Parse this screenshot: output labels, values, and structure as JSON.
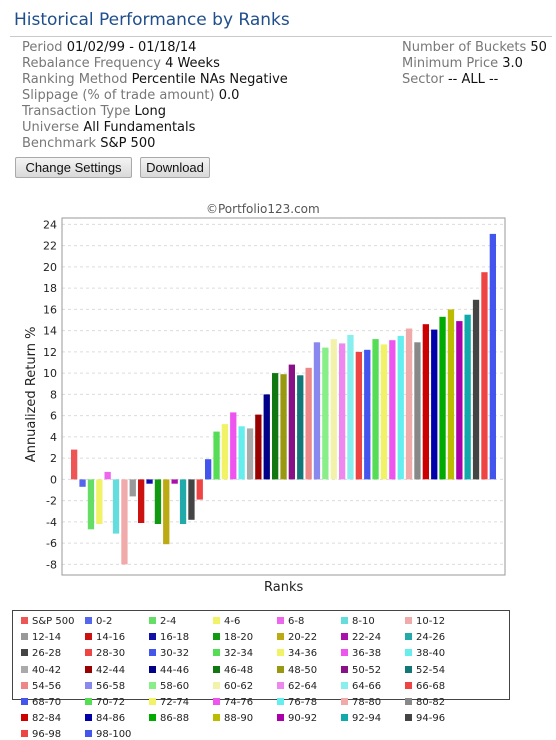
{
  "page": {
    "title": "Historical Performance by Ranks",
    "copyright": "©Portfolio123.com",
    "buttons": {
      "change_settings": "Change Settings",
      "download": "Download"
    }
  },
  "settings": {
    "left": [
      {
        "key": "Period",
        "value": "01/02/99 - 01/18/14"
      },
      {
        "key": "Rebalance Frequency",
        "value": "4 Weeks"
      },
      {
        "key": "Ranking Method",
        "value": "Percentile NAs Negative"
      },
      {
        "key": "Slippage (% of trade amount)",
        "value": "0.0"
      },
      {
        "key": "Transaction Type",
        "value": "Long"
      },
      {
        "key": "Universe",
        "value": "All Fundamentals"
      },
      {
        "key": "Benchmark",
        "value": "S&P 500"
      }
    ],
    "right": [
      {
        "key": "Number of Buckets",
        "value": "50"
      },
      {
        "key": "Minimum Price",
        "value": "3.0"
      },
      {
        "key": "Sector",
        "value": "-- ALL --"
      }
    ]
  },
  "chart_data": {
    "type": "bar",
    "xlabel": "Ranks",
    "ylabel": "Annualized Return %",
    "ylim": [
      -9,
      24.6
    ],
    "yticks": [
      -8,
      -6,
      -4,
      -2,
      0,
      2,
      4,
      6,
      8,
      10,
      12,
      14,
      16,
      18,
      20,
      22,
      24
    ],
    "grid": true,
    "legend_position": "bottom",
    "series": [
      {
        "name": "S&P 500",
        "color": "#ee5555",
        "value": 2.8
      },
      {
        "name": "0-2",
        "color": "#5566ee",
        "value": -0.7
      },
      {
        "name": "2-4",
        "color": "#66dd66",
        "value": -4.7
      },
      {
        "name": "4-6",
        "color": "#f2f266",
        "value": -4.2
      },
      {
        "name": "6-8",
        "color": "#ee66ee",
        "value": 0.7
      },
      {
        "name": "8-10",
        "color": "#66dddd",
        "value": -5.1
      },
      {
        "name": "10-12",
        "color": "#f0aaaa",
        "value": -8.0
      },
      {
        "name": "12-14",
        "color": "#999999",
        "value": -1.6
      },
      {
        "name": "14-16",
        "color": "#cc1111",
        "value": -4.1
      },
      {
        "name": "16-18",
        "color": "#1111aa",
        "value": -0.4
      },
      {
        "name": "18-20",
        "color": "#119911",
        "value": -4.2
      },
      {
        "name": "20-22",
        "color": "#bbaa11",
        "value": -6.1
      },
      {
        "name": "22-24",
        "color": "#aa11aa",
        "value": -0.4
      },
      {
        "name": "24-26",
        "color": "#22aaaa",
        "value": -4.2
      },
      {
        "name": "26-28",
        "color": "#444444",
        "value": -3.8
      },
      {
        "name": "28-30",
        "color": "#ee4444",
        "value": -1.9
      },
      {
        "name": "30-32",
        "color": "#4455ee",
        "value": 1.9
      },
      {
        "name": "32-34",
        "color": "#55dd55",
        "value": 4.5
      },
      {
        "name": "34-36",
        "color": "#f2f266",
        "value": 5.2
      },
      {
        "name": "36-38",
        "color": "#ee55ee",
        "value": 6.3
      },
      {
        "name": "38-40",
        "color": "#66eeee",
        "value": 5.0
      },
      {
        "name": "40-42",
        "color": "#aaaaaa",
        "value": 4.8
      },
      {
        "name": "42-44",
        "color": "#990000",
        "value": 6.1
      },
      {
        "name": "44-46",
        "color": "#000088",
        "value": 8.0
      },
      {
        "name": "46-48",
        "color": "#117711",
        "value": 10.0
      },
      {
        "name": "48-50",
        "color": "#999911",
        "value": 9.9
      },
      {
        "name": "50-52",
        "color": "#881188",
        "value": 10.8
      },
      {
        "name": "52-54",
        "color": "#117777",
        "value": 9.8
      },
      {
        "name": "54-56",
        "color": "#ee8888",
        "value": 10.5
      },
      {
        "name": "56-58",
        "color": "#8888ee",
        "value": 12.9
      },
      {
        "name": "58-60",
        "color": "#88ee88",
        "value": 12.4
      },
      {
        "name": "60-62",
        "color": "#f2f2aa",
        "value": 13.2
      },
      {
        "name": "62-64",
        "color": "#ee88ee",
        "value": 12.8
      },
      {
        "name": "64-66",
        "color": "#88eeee",
        "value": 13.6
      },
      {
        "name": "66-68",
        "color": "#ee4444",
        "value": 12.0
      },
      {
        "name": "68-70",
        "color": "#4455ee",
        "value": 12.2
      },
      {
        "name": "70-72",
        "color": "#55dd55",
        "value": 13.2
      },
      {
        "name": "72-74",
        "color": "#f2f266",
        "value": 12.7
      },
      {
        "name": "74-76",
        "color": "#ee55ee",
        "value": 13.1
      },
      {
        "name": "76-78",
        "color": "#66eeee",
        "value": 13.5
      },
      {
        "name": "78-80",
        "color": "#f0aaaa",
        "value": 14.2
      },
      {
        "name": "80-82",
        "color": "#888888",
        "value": 12.9
      },
      {
        "name": "82-84",
        "color": "#cc0000",
        "value": 14.6
      },
      {
        "name": "84-86",
        "color": "#0000aa",
        "value": 14.1
      },
      {
        "name": "86-88",
        "color": "#00aa00",
        "value": 15.3
      },
      {
        "name": "88-90",
        "color": "#bbbb00",
        "value": 16.0
      },
      {
        "name": "90-92",
        "color": "#aa00aa",
        "value": 14.9
      },
      {
        "name": "92-94",
        "color": "#11aaaa",
        "value": 15.5
      },
      {
        "name": "94-96",
        "color": "#444444",
        "value": 16.9
      },
      {
        "name": "96-98",
        "color": "#ee4444",
        "value": 19.5
      },
      {
        "name": "98-100",
        "color": "#4455ee",
        "value": 23.1
      }
    ]
  }
}
